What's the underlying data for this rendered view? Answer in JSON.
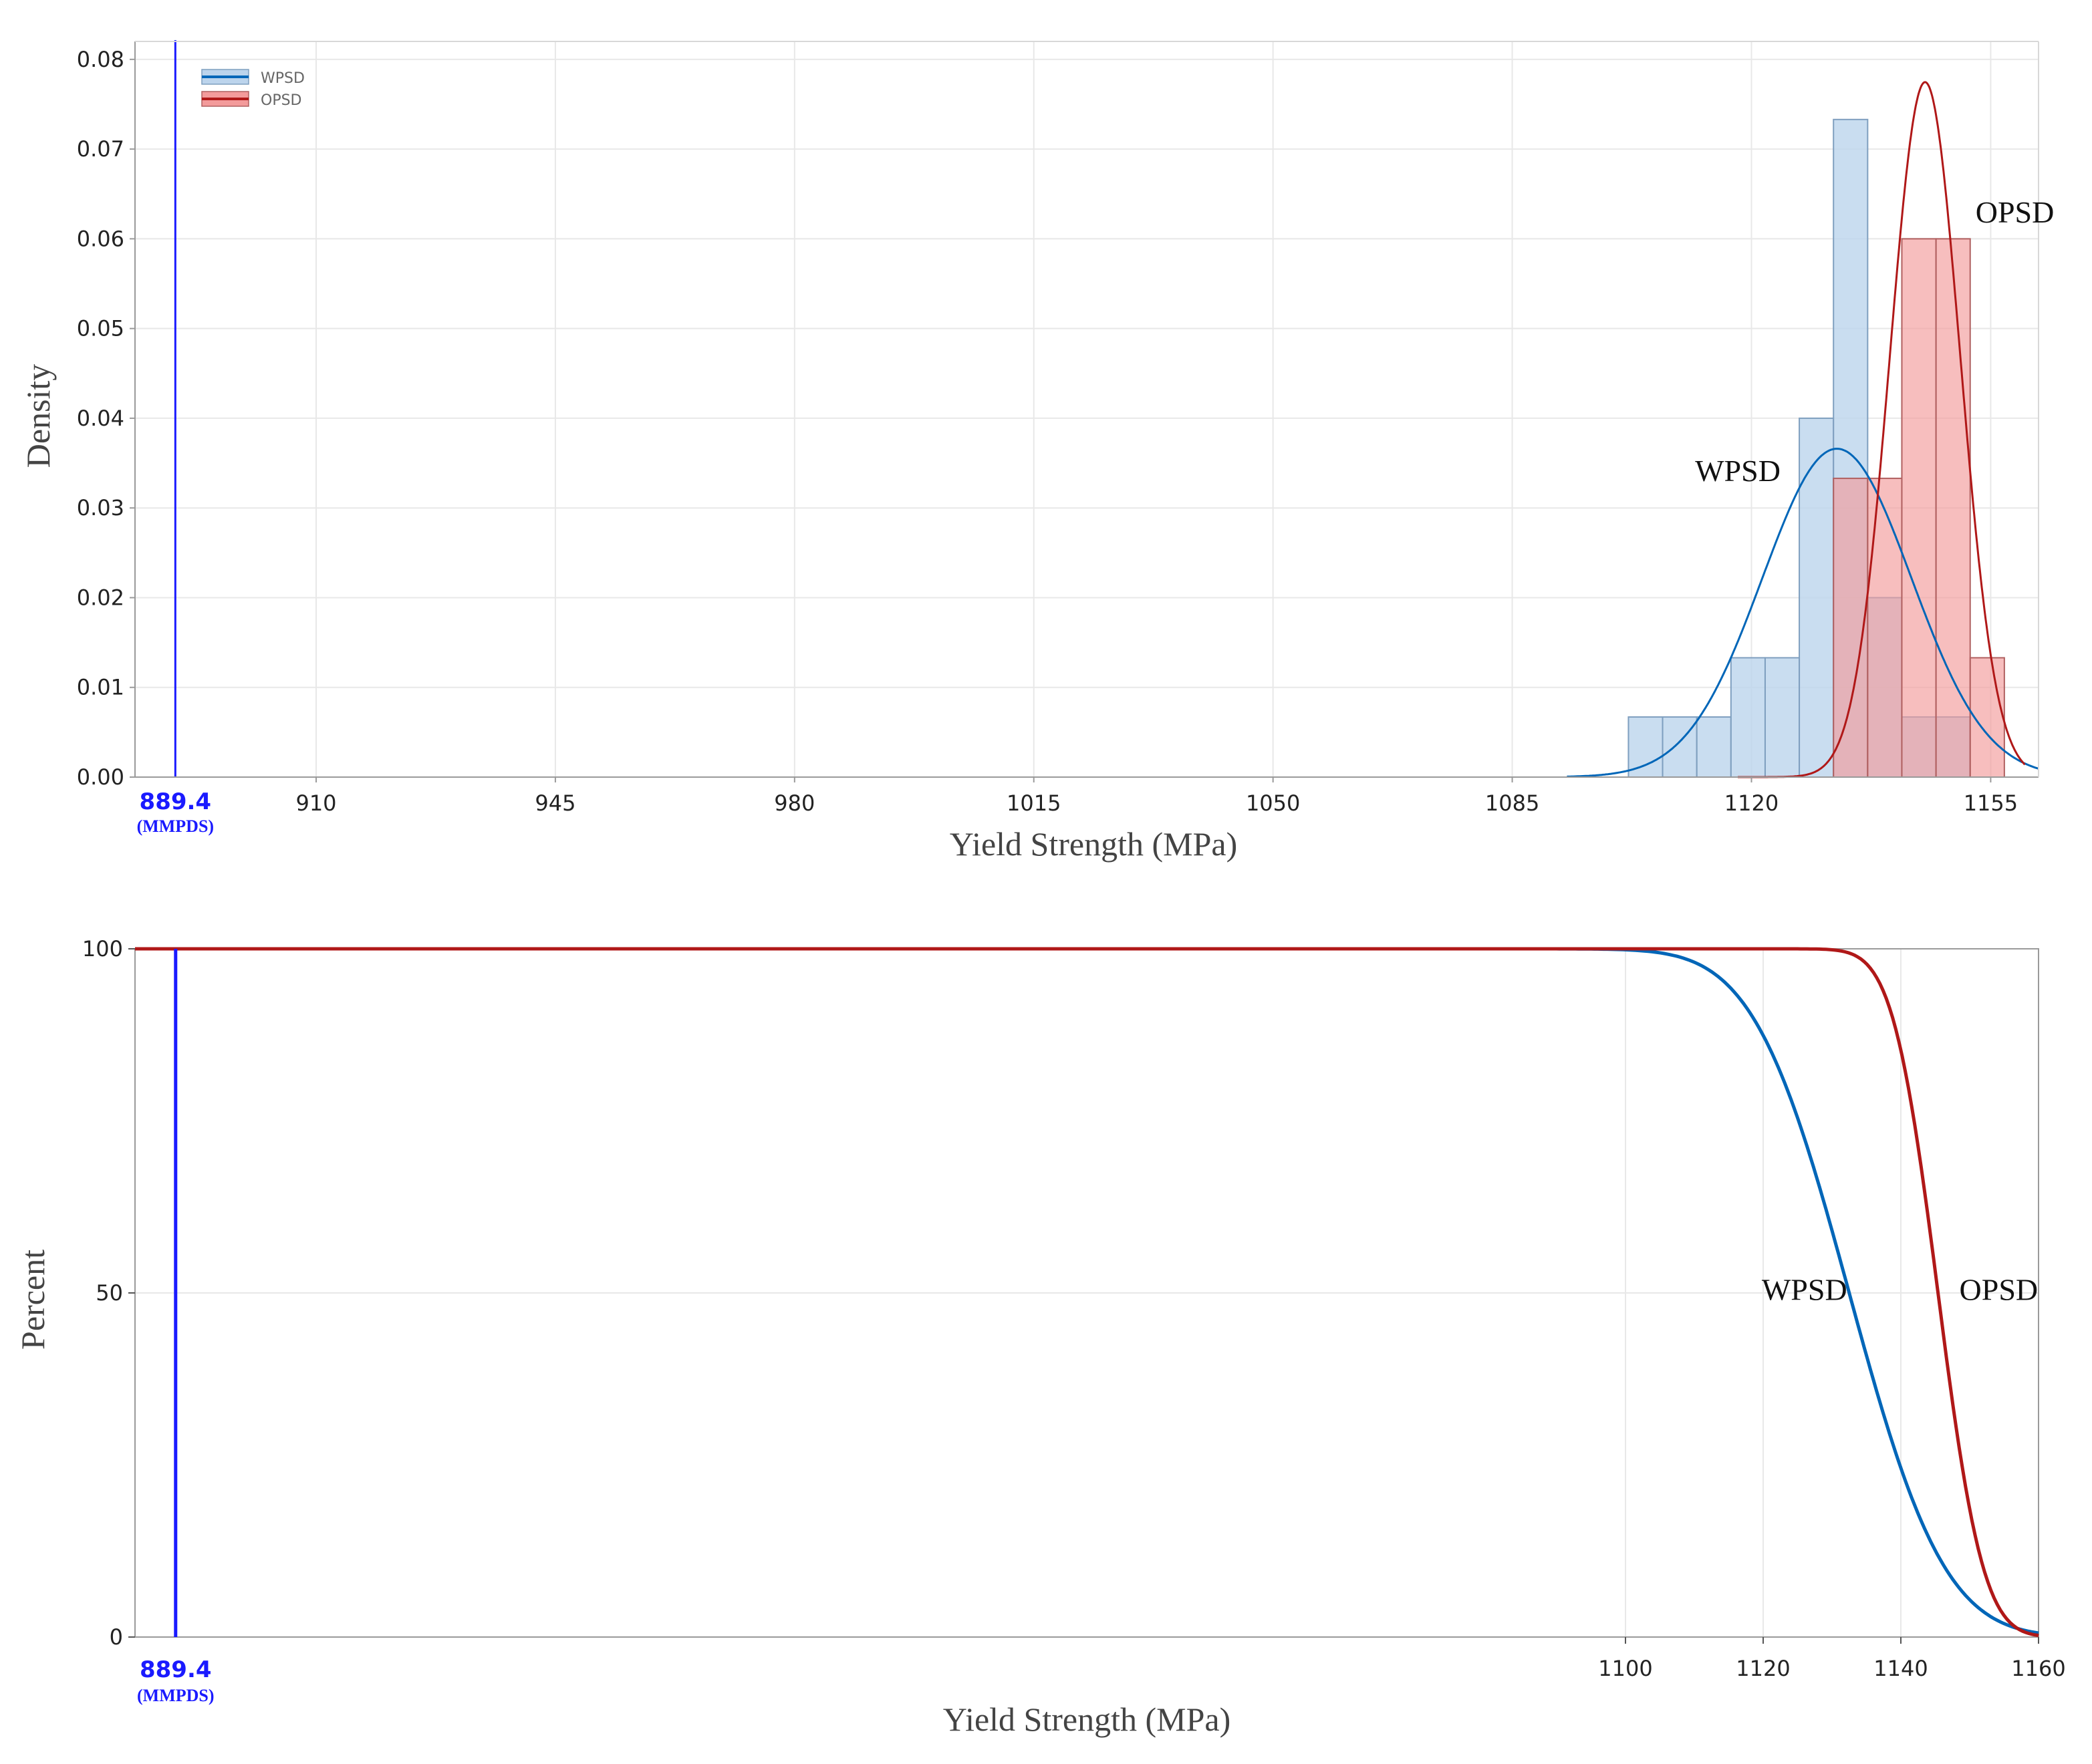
{
  "colors": {
    "wpsd_line": "#0066b8",
    "wpsd_fill": "#bcd4ec",
    "wpsd_edge": "#7f9fbf",
    "opsd_line": "#b01818",
    "opsd_fill": "#f39b9b",
    "opsd_edge": "#b06060",
    "ref_line": "#1a1aff",
    "grid": "#e8e8e8",
    "axis": "#9a9a9a"
  },
  "chart_data": [
    {
      "type": "histogram",
      "title": "",
      "xlabel": "Yield Strength (MPa)",
      "ylabel": "Density",
      "xlim": [
        883.5,
        1162
      ],
      "ylim": [
        0,
        0.082
      ],
      "xticks": [
        910,
        945,
        980,
        1015,
        1050,
        1085,
        1120,
        1155
      ],
      "yticks": [
        0.0,
        0.01,
        0.02,
        0.03,
        0.04,
        0.05,
        0.06,
        0.07,
        0.08
      ],
      "ytick_labels": [
        "0.00",
        "0.01",
        "0.02",
        "0.03",
        "0.04",
        "0.05",
        "0.06",
        "0.07",
        "0.08"
      ],
      "grid": true,
      "legend": {
        "position": "top-left",
        "entries": [
          "WPSD",
          "OPSD"
        ]
      },
      "reference_line": {
        "x": 889.4,
        "label": "889.4",
        "sublabel": "(MMPDS)"
      },
      "annotations": [
        {
          "text": "WPSD",
          "x": 1118,
          "y": 0.033
        },
        {
          "text": "OPSD",
          "x": 1152,
          "y": 0.0618
        }
      ],
      "series": [
        {
          "name": "WPSD",
          "bin_width": 5,
          "bins": [
            {
              "x0": 1102,
              "density": 0.0067
            },
            {
              "x0": 1107,
              "density": 0.0067
            },
            {
              "x0": 1112,
              "density": 0.0067
            },
            {
              "x0": 1117,
              "density": 0.0133
            },
            {
              "x0": 1122,
              "density": 0.0133
            },
            {
              "x0": 1127,
              "density": 0.04
            },
            {
              "x0": 1132,
              "density": 0.0733
            },
            {
              "x0": 1137,
              "density": 0.02
            },
            {
              "x0": 1142,
              "density": 0.0067
            },
            {
              "x0": 1147,
              "density": 0.0067
            }
          ],
          "fit": {
            "dist": "normal",
            "mean": 1132.5,
            "sd": 10.9,
            "x_range": [
              1093,
              1162
            ]
          }
        },
        {
          "name": "OPSD",
          "bin_width": 5,
          "bins": [
            {
              "x0": 1132,
              "density": 0.0333
            },
            {
              "x0": 1137,
              "density": 0.0333
            },
            {
              "x0": 1142,
              "density": 0.06
            },
            {
              "x0": 1147,
              "density": 0.06
            },
            {
              "x0": 1152,
              "density": 0.0133
            }
          ],
          "fit": {
            "dist": "normal",
            "mean": 1145.4,
            "sd": 5.15,
            "x_range": [
              1118,
              1160
            ]
          }
        }
      ]
    },
    {
      "type": "line",
      "title": "",
      "xlabel": "Yield Strength (MPa)",
      "ylabel": "Percent",
      "xlim": [
        883.5,
        1160
      ],
      "ylim": [
        0,
        100
      ],
      "xticks": [
        1100,
        1120,
        1140,
        1160
      ],
      "yticks": [
        0,
        50,
        100
      ],
      "grid": true,
      "reference_line": {
        "x": 889.4,
        "label": "889.4",
        "sublabel": "(MMPDS)"
      },
      "annotations": [
        {
          "text": "WPSD",
          "x": 1126,
          "y": 49
        },
        {
          "text": "OPSD",
          "x": 1148.5,
          "y": 49
        }
      ],
      "series": [
        {
          "name": "WPSD",
          "curve": "survival",
          "dist": "normal",
          "mean": 1132.5,
          "sd": 10.9
        },
        {
          "name": "OPSD",
          "curve": "survival",
          "dist": "normal",
          "mean": 1145.4,
          "sd": 5.15
        }
      ]
    }
  ]
}
